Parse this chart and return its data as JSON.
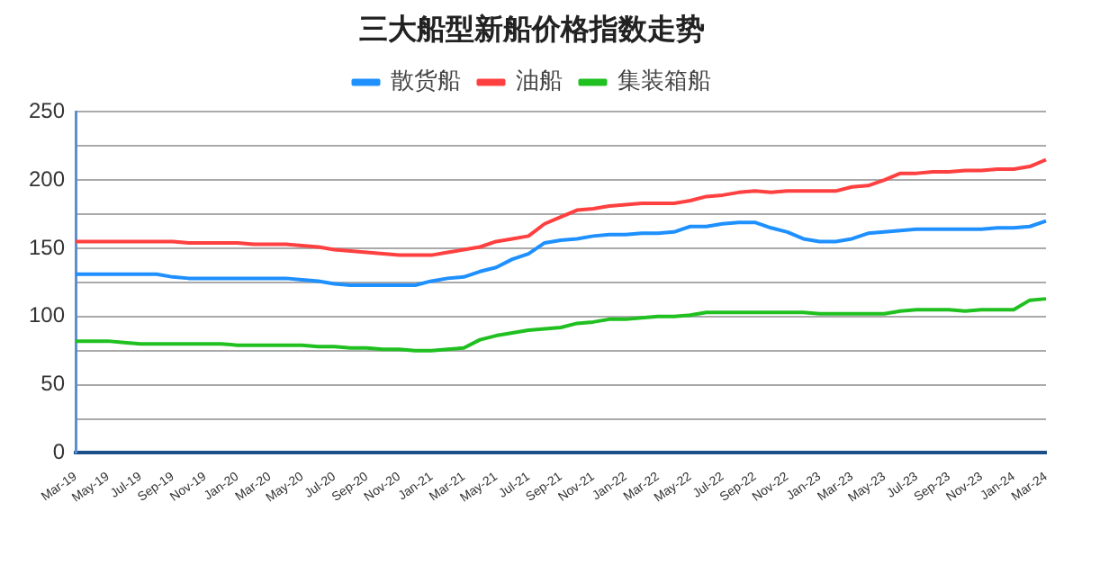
{
  "chart_data": {
    "type": "line",
    "title": "三大船型新船价格指数走势",
    "categories": [
      "Mar-19",
      null,
      "May-19",
      null,
      "Jul-19",
      null,
      "Sep-19",
      null,
      "Nov-19",
      null,
      "Jan-20",
      null,
      "Mar-20",
      null,
      "May-20",
      null,
      "Jul-20",
      null,
      "Sep-20",
      null,
      "Nov-20",
      null,
      "Jan-21",
      null,
      "Mar-21",
      null,
      "May-21",
      null,
      "Jul-21",
      null,
      "Sep-21",
      null,
      "Nov-21",
      null,
      "Jan-22",
      null,
      "Mar-22",
      null,
      "May-22",
      null,
      "Jul-22",
      null,
      "Sep-22",
      null,
      "Nov-22",
      null,
      "Jan-23",
      null,
      "Mar-23",
      null,
      "May-23",
      null,
      "Jul-23",
      null,
      "Sep-23",
      null,
      "Nov-23",
      null,
      "Jan-24",
      null,
      "Mar-24"
    ],
    "series": [
      {
        "name": "散货船",
        "color": "#1e90ff",
        "values": [
          131,
          131,
          131,
          131,
          131,
          131,
          129,
          128,
          128,
          128,
          128,
          128,
          128,
          128,
          127,
          126,
          124,
          123,
          123,
          123,
          123,
          123,
          126,
          128,
          129,
          133,
          136,
          142,
          146,
          154,
          156,
          157,
          159,
          160,
          160,
          161,
          161,
          162,
          166,
          166,
          168,
          169,
          169,
          165,
          162,
          157,
          155,
          155,
          157,
          161,
          162,
          163,
          164,
          164,
          164,
          164,
          164,
          165,
          165,
          166,
          170
        ]
      },
      {
        "name": "油船",
        "color": "#ff4040",
        "values": [
          155,
          155,
          155,
          155,
          155,
          155,
          155,
          154,
          154,
          154,
          154,
          153,
          153,
          153,
          152,
          151,
          149,
          148,
          147,
          146,
          145,
          145,
          145,
          147,
          149,
          151,
          155,
          157,
          159,
          168,
          173,
          178,
          179,
          181,
          182,
          183,
          183,
          183,
          185,
          188,
          189,
          191,
          192,
          191,
          192,
          192,
          192,
          192,
          195,
          196,
          200,
          205,
          205,
          206,
          206,
          207,
          207,
          208,
          208,
          210,
          215
        ]
      },
      {
        "name": "集装箱船",
        "color": "#20c020",
        "values": [
          82,
          82,
          82,
          81,
          80,
          80,
          80,
          80,
          80,
          80,
          79,
          79,
          79,
          79,
          79,
          78,
          78,
          77,
          77,
          76,
          76,
          75,
          75,
          76,
          77,
          83,
          86,
          88,
          90,
          91,
          92,
          95,
          96,
          98,
          98,
          99,
          100,
          100,
          101,
          103,
          103,
          103,
          103,
          103,
          103,
          103,
          102,
          102,
          102,
          102,
          102,
          104,
          105,
          105,
          105,
          104,
          105,
          105,
          105,
          112,
          113
        ]
      }
    ],
    "ylim": [
      0,
      250
    ],
    "yticks": [
      0,
      {
        "value": 25,
        "label": null
      },
      50,
      {
        "value": 75,
        "label": null
      },
      100,
      {
        "value": 125,
        "label": null
      },
      150,
      {
        "value": 175,
        "label": null
      },
      200,
      {
        "value": 225,
        "label": null
      },
      250
    ],
    "grid": "y",
    "legend": "top",
    "marker": "none",
    "line_style": "solid"
  }
}
